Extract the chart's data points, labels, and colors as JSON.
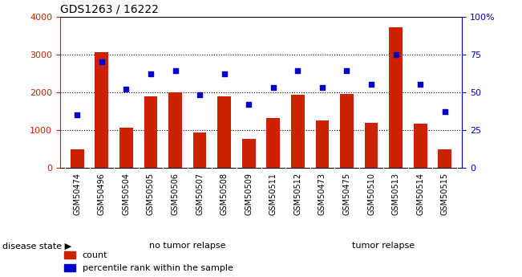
{
  "title": "GDS1263 / 16222",
  "categories": [
    "GSM50474",
    "GSM50496",
    "GSM50504",
    "GSM50505",
    "GSM50506",
    "GSM50507",
    "GSM50508",
    "GSM50509",
    "GSM50511",
    "GSM50512",
    "GSM50473",
    "GSM50475",
    "GSM50510",
    "GSM50513",
    "GSM50514",
    "GSM50515"
  ],
  "counts": [
    480,
    3050,
    1050,
    1880,
    2000,
    930,
    1890,
    760,
    1310,
    1930,
    1250,
    1950,
    1180,
    3720,
    1170,
    490
  ],
  "percentiles": [
    35,
    70,
    52,
    62,
    64,
    48,
    62,
    42,
    53,
    64,
    53,
    64,
    55,
    75,
    55,
    37
  ],
  "no_tumor_count": 10,
  "bar_color": "#cc2200",
  "dot_color": "#0000cc",
  "left_yaxis_color": "#cc2200",
  "right_yaxis_color": "#0000cc",
  "ylim_left": [
    0,
    4000
  ],
  "ylim_right": [
    0,
    100
  ],
  "left_yticks": [
    0,
    1000,
    2000,
    3000,
    4000
  ],
  "right_yticks": [
    0,
    25,
    50,
    75,
    100
  ],
  "right_yticklabels": [
    "0",
    "25",
    "50",
    "75",
    "100%"
  ],
  "grid_values": [
    1000,
    2000,
    3000
  ],
  "no_tumor_label": "no tumor relapse",
  "tumor_label": "tumor relapse",
  "disease_state_label": "disease state",
  "legend_count": "count",
  "legend_percentile": "percentile rank within the sample",
  "no_tumor_color": "#ccffcc",
  "tumor_color": "#55dd55",
  "xtick_bg_color": "#c8c8c8",
  "figsize": [
    6.51,
    3.45
  ],
  "dpi": 100
}
